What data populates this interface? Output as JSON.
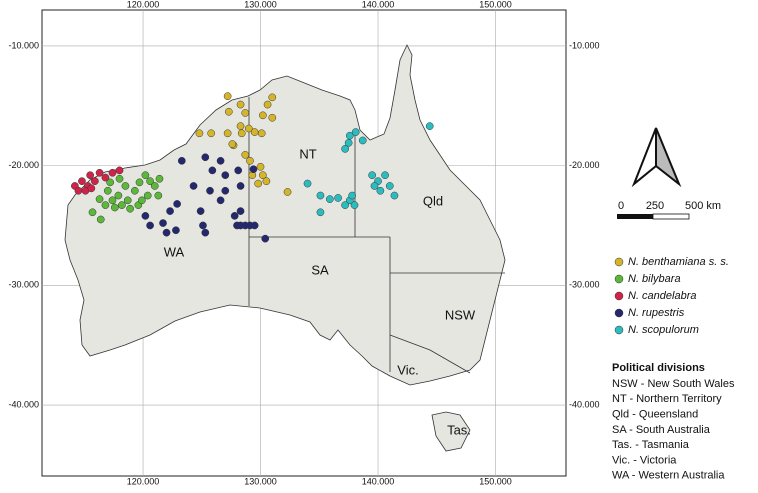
{
  "chart_data": {
    "type": "scatter",
    "xlim": [
      111.4,
      156.0
    ],
    "ylim": [
      -45.93,
      -7.0
    ],
    "xticks": [
      {
        "value": 120,
        "label": "120.000"
      },
      {
        "value": 130,
        "label": "130.000"
      },
      {
        "value": 140,
        "label": "140.000"
      },
      {
        "value": 150,
        "label": "150.000"
      }
    ],
    "yticks": [
      {
        "value": -10,
        "label": "-10.000"
      },
      {
        "value": -20,
        "label": "-20.000"
      },
      {
        "value": -30,
        "label": "-30.000"
      },
      {
        "value": -40,
        "label": "-40.000"
      }
    ],
    "grid": true,
    "series": [
      {
        "name": "N. benthamiana s. s.",
        "color": "#d4b52a",
        "x": [
          127.2,
          128.3,
          130.6,
          131.0,
          128.7,
          130.2,
          127.3,
          124.8,
          125.8,
          127.2,
          127.7,
          128.3,
          128.4,
          129.0,
          129.5,
          130.1,
          131.0,
          128.7,
          129.1,
          130.0,
          129.8,
          130.2,
          132.3,
          129.3,
          130.5,
          127.6
        ],
        "y": [
          -14.2,
          -14.9,
          -14.9,
          -14.3,
          -15.6,
          -15.8,
          -15.5,
          -17.3,
          -17.3,
          -17.3,
          -18.3,
          -16.7,
          -17.3,
          -16.9,
          -17.2,
          -17.3,
          -16.0,
          -19.1,
          -19.6,
          -20.1,
          -21.5,
          -20.8,
          -22.2,
          -20.8,
          -21.3,
          -18.2
        ]
      },
      {
        "name": "N. bilybara",
        "color": "#5cb83a",
        "x": [
          115.7,
          116.3,
          116.4,
          117.0,
          117.4,
          117.9,
          118.2,
          118.7,
          119.3,
          119.7,
          120.2,
          120.6,
          121.0,
          121.3,
          120.4,
          119.6,
          118.9,
          117.6,
          116.8,
          121.4,
          118.5,
          119.9,
          117.2,
          118.0
        ],
        "y": [
          -23.9,
          -22.8,
          -24.5,
          -22.1,
          -22.9,
          -22.5,
          -23.3,
          -22.9,
          -22.1,
          -21.4,
          -20.8,
          -21.3,
          -21.7,
          -22.5,
          -22.5,
          -23.3,
          -23.6,
          -23.5,
          -23.3,
          -21.1,
          -21.7,
          -22.9,
          -21.4,
          -21.1
        ]
      },
      {
        "name": "N. candelabra",
        "color": "#d0234a",
        "x": [
          114.2,
          114.5,
          114.8,
          115.3,
          115.5,
          115.9,
          116.3,
          116.8,
          117.4,
          118.0,
          115.1,
          115.6
        ],
        "y": [
          -21.7,
          -22.1,
          -21.3,
          -21.7,
          -20.8,
          -21.3,
          -20.6,
          -21.0,
          -20.6,
          -20.4,
          -22.1,
          -21.9
        ]
      },
      {
        "name": "N. rupestris",
        "color": "#24286e",
        "x": [
          123.3,
          125.3,
          126.6,
          127.0,
          128.1,
          129.4,
          125.9,
          124.3,
          125.7,
          127.0,
          128.3,
          120.2,
          120.6,
          121.7,
          122.3,
          122.9,
          124.9,
          125.3,
          125.1,
          126.6,
          127.8,
          128.0,
          128.3,
          128.7,
          129.1,
          129.5,
          130.4,
          122.8,
          122.0,
          128.3
        ],
        "y": [
          -19.6,
          -19.3,
          -19.6,
          -20.8,
          -20.4,
          -20.3,
          -20.4,
          -21.7,
          -22.1,
          -22.1,
          -21.7,
          -24.2,
          -25.0,
          -24.8,
          -23.8,
          -23.2,
          -23.8,
          -25.6,
          -25.0,
          -22.9,
          -24.2,
          -25.0,
          -25.0,
          -25.0,
          -25.0,
          -25.0,
          -26.1,
          -25.4,
          -25.6,
          -23.8
        ]
      },
      {
        "name": "N. scopulorum",
        "color": "#2bbcc0",
        "x": [
          137.6,
          138.1,
          137.5,
          138.7,
          137.2,
          144.4,
          134.0,
          135.1,
          135.9,
          136.6,
          137.6,
          138.0,
          137.2,
          135.1,
          139.5,
          140.0,
          140.6,
          140.2,
          141.0,
          141.4,
          139.7,
          137.8
        ],
        "y": [
          -17.5,
          -17.2,
          -18.1,
          -17.9,
          -18.6,
          -16.7,
          -21.5,
          -22.5,
          -22.8,
          -22.7,
          -22.9,
          -23.3,
          -23.3,
          -23.9,
          -20.8,
          -21.3,
          -20.8,
          -22.1,
          -21.7,
          -22.5,
          -21.7,
          -22.5
        ]
      }
    ]
  },
  "regions": [
    "NT",
    "Qld",
    "WA",
    "SA",
    "NSW",
    "Vic.",
    "Tas."
  ],
  "scale_bar": [
    "0",
    "250",
    "500 km"
  ],
  "divisions": {
    "title": "Political divisions",
    "items": [
      "NSW - New South Wales",
      "NT - Northern Territory",
      "Qld - Queensland",
      "SA - South Australia",
      "Tas. - Tasmania",
      "Vic. - Victoria",
      "WA - Western Australia"
    ]
  }
}
